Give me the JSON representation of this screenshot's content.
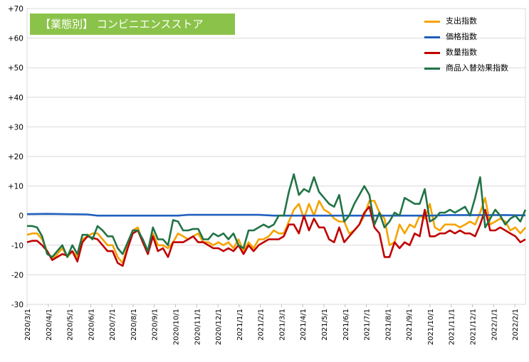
{
  "title": "【業態別】 コンビニエンスストア",
  "chart_data": {
    "type": "line",
    "ylim": [
      -30,
      70
    ],
    "yticks": [
      "+70",
      "+60",
      "+50",
      "+40",
      "+30",
      "+20",
      "+10",
      "0",
      "-10",
      "-20",
      "-30"
    ],
    "xticks": [
      "2020/3/1",
      "2020/4/1",
      "2020/5/1",
      "2020/6/1",
      "2020/7/1",
      "2020/8/1",
      "2020/9/1",
      "2020/10/1",
      "2020/11/1",
      "2020/12/1",
      "2021/1/1",
      "2021/2/1",
      "2021/3/1",
      "2021/4/1",
      "2021/5/1",
      "2021/6/1",
      "2021/7/1",
      "2021/8/1",
      "2021/9/1",
      "2021/10/1",
      "2021/11/1",
      "2021/12/1",
      "2022/1/1",
      "2022/2/1"
    ],
    "grid": true,
    "legend_position": "top-right",
    "series": [
      {
        "name": "支出指数",
        "color": "#f5a300",
        "points": [
          [
            0,
            -6.5
          ],
          [
            1,
            -6
          ],
          [
            2,
            -6
          ],
          [
            3,
            -8
          ],
          [
            4,
            -12
          ],
          [
            5,
            -15
          ],
          [
            6,
            -13
          ],
          [
            7,
            -11
          ],
          [
            8,
            -14
          ],
          [
            9,
            -12
          ],
          [
            10,
            -14
          ],
          [
            11,
            -8
          ],
          [
            12,
            -7
          ],
          [
            13,
            -6
          ],
          [
            14,
            -6
          ],
          [
            15,
            -8
          ],
          [
            16,
            -10
          ],
          [
            17,
            -10
          ],
          [
            18,
            -14
          ],
          [
            19,
            -16
          ],
          [
            20,
            -10
          ],
          [
            21,
            -5
          ],
          [
            22,
            -4
          ],
          [
            23,
            -9
          ],
          [
            24,
            -12
          ],
          [
            25,
            -6
          ],
          [
            26,
            -10
          ],
          [
            27,
            -10
          ],
          [
            28,
            -11
          ],
          [
            29,
            -9
          ],
          [
            30,
            -6
          ],
          [
            31,
            -7
          ],
          [
            32,
            -8
          ],
          [
            33,
            -7
          ],
          [
            34,
            -6
          ],
          [
            35,
            -9
          ],
          [
            36,
            -9
          ],
          [
            37,
            -10
          ],
          [
            38,
            -9
          ],
          [
            39,
            -10
          ],
          [
            40,
            -9
          ],
          [
            41,
            -11
          ],
          [
            42,
            -8
          ],
          [
            43,
            -12
          ],
          [
            44,
            -9
          ],
          [
            45,
            -11
          ],
          [
            46,
            -8
          ],
          [
            47,
            -8
          ],
          [
            48,
            -7
          ],
          [
            49,
            -5
          ],
          [
            50,
            -6
          ],
          [
            51,
            -6
          ],
          [
            52,
            -2
          ],
          [
            53,
            2
          ],
          [
            54,
            4
          ],
          [
            55,
            -1
          ],
          [
            56,
            4
          ],
          [
            57,
            0
          ],
          [
            58,
            5
          ],
          [
            59,
            2
          ],
          [
            60,
            1
          ],
          [
            61,
            -1
          ],
          [
            62,
            -2
          ],
          [
            63,
            -2
          ],
          [
            64,
            -6
          ],
          [
            65,
            -5
          ],
          [
            66,
            -3
          ],
          [
            67,
            0
          ],
          [
            68,
            5
          ],
          [
            69,
            5
          ],
          [
            70,
            1
          ],
          [
            71,
            -1
          ],
          [
            72,
            -10
          ],
          [
            73,
            -9
          ],
          [
            74,
            -3
          ],
          [
            75,
            -6
          ],
          [
            76,
            -3
          ],
          [
            77,
            -4
          ],
          [
            78,
            0
          ],
          [
            79,
            -1
          ],
          [
            80,
            4
          ],
          [
            81,
            -4
          ],
          [
            82,
            -5
          ],
          [
            83,
            -3
          ],
          [
            84,
            -3
          ],
          [
            85,
            -3
          ],
          [
            86,
            -4
          ],
          [
            87,
            -3
          ],
          [
            88,
            -2
          ],
          [
            89,
            -3
          ],
          [
            90,
            1
          ],
          [
            91,
            6
          ],
          [
            92,
            -3
          ],
          [
            93,
            -2
          ],
          [
            94,
            -1
          ],
          [
            95,
            -2
          ],
          [
            96,
            -5
          ],
          [
            97,
            -4
          ],
          [
            98,
            -6
          ],
          [
            99,
            -4
          ]
        ]
      },
      {
        "name": "価格指数",
        "color": "#1f5fbf",
        "points": [
          [
            0,
            0.5
          ],
          [
            4,
            0.6
          ],
          [
            12,
            0.4
          ],
          [
            14,
            0
          ],
          [
            30,
            0
          ],
          [
            32,
            0.3
          ],
          [
            46,
            0.3
          ],
          [
            49,
            0
          ],
          [
            62,
            0
          ],
          [
            75,
            0
          ],
          [
            80,
            0
          ],
          [
            84,
            0.2
          ],
          [
            95,
            0.2
          ],
          [
            99,
            0.1
          ]
        ]
      },
      {
        "name": "数量指数",
        "color": "#c00000",
        "points": [
          [
            0,
            -9
          ],
          [
            1,
            -8.5
          ],
          [
            2,
            -8.5
          ],
          [
            3,
            -10
          ],
          [
            4,
            -12
          ],
          [
            5,
            -15
          ],
          [
            6,
            -14
          ],
          [
            7,
            -13
          ],
          [
            8,
            -13.5
          ],
          [
            9,
            -12
          ],
          [
            10,
            -15.5
          ],
          [
            11,
            -9
          ],
          [
            12,
            -7
          ],
          [
            13,
            -7.5
          ],
          [
            14,
            -8
          ],
          [
            15,
            -10
          ],
          [
            16,
            -12
          ],
          [
            17,
            -12
          ],
          [
            18,
            -16
          ],
          [
            19,
            -17
          ],
          [
            20,
            -11
          ],
          [
            21,
            -6
          ],
          [
            22,
            -5
          ],
          [
            23,
            -9
          ],
          [
            24,
            -13
          ],
          [
            25,
            -7
          ],
          [
            26,
            -12
          ],
          [
            27,
            -11
          ],
          [
            28,
            -14
          ],
          [
            29,
            -9
          ],
          [
            30,
            -9
          ],
          [
            31,
            -9
          ],
          [
            32,
            -8
          ],
          [
            33,
            -7
          ],
          [
            34,
            -9
          ],
          [
            35,
            -9
          ],
          [
            36,
            -10
          ],
          [
            37,
            -11
          ],
          [
            38,
            -11
          ],
          [
            39,
            -12
          ],
          [
            40,
            -11
          ],
          [
            41,
            -12
          ],
          [
            42,
            -10
          ],
          [
            43,
            -13
          ],
          [
            44,
            -10
          ],
          [
            45,
            -12
          ],
          [
            46,
            -10
          ],
          [
            47,
            -9
          ],
          [
            48,
            -8
          ],
          [
            49,
            -8
          ],
          [
            50,
            -8
          ],
          [
            51,
            -7
          ],
          [
            52,
            -3
          ],
          [
            53,
            -3
          ],
          [
            54,
            -6
          ],
          [
            55,
            0
          ],
          [
            56,
            -5
          ],
          [
            57,
            -1
          ],
          [
            58,
            -4
          ],
          [
            59,
            -4
          ],
          [
            60,
            -8
          ],
          [
            61,
            -9
          ],
          [
            62,
            -4
          ],
          [
            63,
            -9
          ],
          [
            64,
            -7
          ],
          [
            65,
            -5
          ],
          [
            66,
            -3
          ],
          [
            67,
            1
          ],
          [
            68,
            3
          ],
          [
            69,
            -4
          ],
          [
            70,
            -6
          ],
          [
            71,
            -14
          ],
          [
            72,
            -14
          ],
          [
            73,
            -9
          ],
          [
            74,
            -11
          ],
          [
            75,
            -9
          ],
          [
            76,
            -10
          ],
          [
            77,
            -6
          ],
          [
            78,
            -7
          ],
          [
            79,
            2
          ],
          [
            80,
            -7
          ],
          [
            81,
            -7
          ],
          [
            82,
            -6
          ],
          [
            83,
            -6
          ],
          [
            84,
            -5
          ],
          [
            85,
            -6
          ],
          [
            86,
            -5
          ],
          [
            87,
            -6
          ],
          [
            88,
            -6
          ],
          [
            89,
            -7
          ],
          [
            90,
            -3
          ],
          [
            91,
            2
          ],
          [
            92,
            -5
          ],
          [
            93,
            -5
          ],
          [
            94,
            -4
          ],
          [
            95,
            -5
          ],
          [
            96,
            -6
          ],
          [
            97,
            -7
          ],
          [
            98,
            -9
          ],
          [
            99,
            -8
          ]
        ]
      },
      {
        "name": "商品入替効果指数",
        "color": "#217346",
        "points": [
          [
            0,
            -3.5
          ],
          [
            1,
            -3.5
          ],
          [
            2,
            -4
          ],
          [
            3,
            -7
          ],
          [
            4,
            -13
          ],
          [
            5,
            -14
          ],
          [
            6,
            -12
          ],
          [
            7,
            -10
          ],
          [
            8,
            -14
          ],
          [
            9,
            -10
          ],
          [
            10,
            -13
          ],
          [
            11,
            -6.5
          ],
          [
            12,
            -6.5
          ],
          [
            13,
            -8
          ],
          [
            14,
            -3.5
          ],
          [
            15,
            -5
          ],
          [
            16,
            -7
          ],
          [
            17,
            -7
          ],
          [
            18,
            -11
          ],
          [
            19,
            -13
          ],
          [
            20,
            -9
          ],
          [
            21,
            -5
          ],
          [
            22,
            -5
          ],
          [
            23,
            -8
          ],
          [
            24,
            -12
          ],
          [
            25,
            -4
          ],
          [
            26,
            -8
          ],
          [
            27,
            -8
          ],
          [
            28,
            -10
          ],
          [
            29,
            -1.5
          ],
          [
            30,
            -2
          ],
          [
            31,
            -5
          ],
          [
            32,
            -5
          ],
          [
            33,
            -4.5
          ],
          [
            34,
            -4.5
          ],
          [
            35,
            -8
          ],
          [
            36,
            -8
          ],
          [
            37,
            -6
          ],
          [
            38,
            -7
          ],
          [
            39,
            -6
          ],
          [
            40,
            -8
          ],
          [
            41,
            -6
          ],
          [
            42,
            -10
          ],
          [
            43,
            -11
          ],
          [
            44,
            -5
          ],
          [
            45,
            -5
          ],
          [
            46,
            -4
          ],
          [
            47,
            -3
          ],
          [
            48,
            -4
          ],
          [
            49,
            -3
          ],
          [
            50,
            0
          ],
          [
            51,
            0
          ],
          [
            52,
            8
          ],
          [
            53,
            14
          ],
          [
            54,
            7
          ],
          [
            55,
            9
          ],
          [
            56,
            8
          ],
          [
            57,
            13
          ],
          [
            58,
            8
          ],
          [
            59,
            6
          ],
          [
            60,
            4
          ],
          [
            61,
            3
          ],
          [
            62,
            7
          ],
          [
            63,
            -2
          ],
          [
            64,
            0
          ],
          [
            65,
            4
          ],
          [
            66,
            7
          ],
          [
            67,
            10
          ],
          [
            68,
            7
          ],
          [
            69,
            -3
          ],
          [
            70,
            1
          ],
          [
            71,
            -4
          ],
          [
            72,
            -2
          ],
          [
            73,
            1
          ],
          [
            74,
            0
          ],
          [
            75,
            6
          ],
          [
            76,
            5
          ],
          [
            77,
            4
          ],
          [
            78,
            4
          ],
          [
            79,
            9
          ],
          [
            80,
            -2
          ],
          [
            81,
            -1
          ],
          [
            82,
            1
          ],
          [
            83,
            1
          ],
          [
            84,
            2
          ],
          [
            85,
            1
          ],
          [
            86,
            2
          ],
          [
            87,
            3
          ],
          [
            88,
            0
          ],
          [
            89,
            6
          ],
          [
            90,
            13
          ],
          [
            91,
            -4
          ],
          [
            92,
            -1
          ],
          [
            93,
            2
          ],
          [
            94,
            0
          ],
          [
            95,
            -3
          ],
          [
            96,
            -1
          ],
          [
            97,
            0
          ],
          [
            98,
            -2
          ],
          [
            99,
            2
          ]
        ]
      }
    ]
  }
}
